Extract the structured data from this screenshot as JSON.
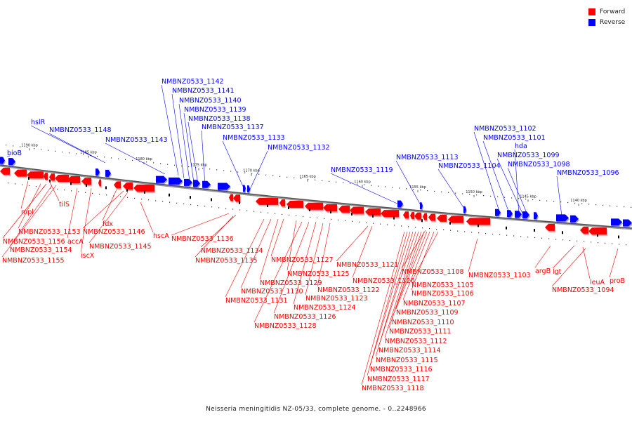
{
  "legend": {
    "forward_label": "Forward",
    "reverse_label": "Reverse",
    "forward_color": "#ff0000",
    "reverse_color": "#0000ff"
  },
  "caption": "Neisseria meningitidis NZ-05/33, complete genome. - 0..2248966",
  "ticks": [
    "1190 kbp",
    "1185 kbp",
    "1180 kbp",
    "1175 kbp",
    "1170 kbp",
    "1165 kbp",
    "1160 kbp",
    "1155 kbp",
    "1150 kbp",
    "1145 kbp",
    "1140 kbp"
  ],
  "reverse_labels": [
    "hslR",
    "NMBNZ0533_1148",
    "NMBNZ0533_1143",
    "NMBNZ0533_1142",
    "NMBNZ0533_1141",
    "NMBNZ0533_1140",
    "NMBNZ0533_1139",
    "NMBNZ0533_1138",
    "NMBNZ0533_1137",
    "NMBNZ0533_1133",
    "NMBNZ0533_1132",
    "NMBNZ0533_1119",
    "NMBNZ0533_1113",
    "NMBNZ0533_1104",
    "NMBNZ0533_1102",
    "NMBNZ0533_1101",
    "hda",
    "NMBNZ0533_1099",
    "NMBNZ0533_1098",
    "NMBNZ0533_1096",
    "bioB"
  ],
  "forward_labels": [
    "mpl",
    "tilS",
    "NMBNZ0533_1153",
    "NMBNZ0533_1156",
    "NMBNZ0533_1154",
    "NMBNZ0533_1155",
    "accA",
    "iscX",
    "fdx",
    "NMBNZ0533_1146",
    "NMBNZ0533_1145",
    "hscA",
    "NMBNZ0533_1136",
    "NMBNZ0533_1134",
    "NMBNZ0533_1135",
    "NMBNZ0533_1127",
    "NMBNZ0533_1129",
    "NMBNZ0533_1130",
    "NMBNZ0533_1131",
    "NMBNZ0533_1125",
    "NMBNZ0533_1122",
    "NMBNZ0533_1123",
    "NMBNZ0533_1124",
    "NMBNZ0533_1126",
    "NMBNZ0533_1128",
    "NMBNZ0533_1121",
    "NMBNZ0533_1120",
    "NMBNZ0533_1108",
    "NMBNZ0533_1105",
    "NMBNZ0533_1106",
    "NMBNZ0533_1107",
    "NMBNZ0533_1109",
    "NMBNZ0533_1110",
    "NMBNZ0533_1111",
    "NMBNZ0533_1112",
    "NMBNZ0533_1114",
    "NMBNZ0533_1115",
    "NMBNZ0533_1116",
    "NMBNZ0533_1117",
    "NMBNZ0533_1118",
    "NMBNZ0533_1103",
    "argB",
    "lgt",
    "leuA",
    "NMBNZ0533_1094",
    "proB"
  ]
}
